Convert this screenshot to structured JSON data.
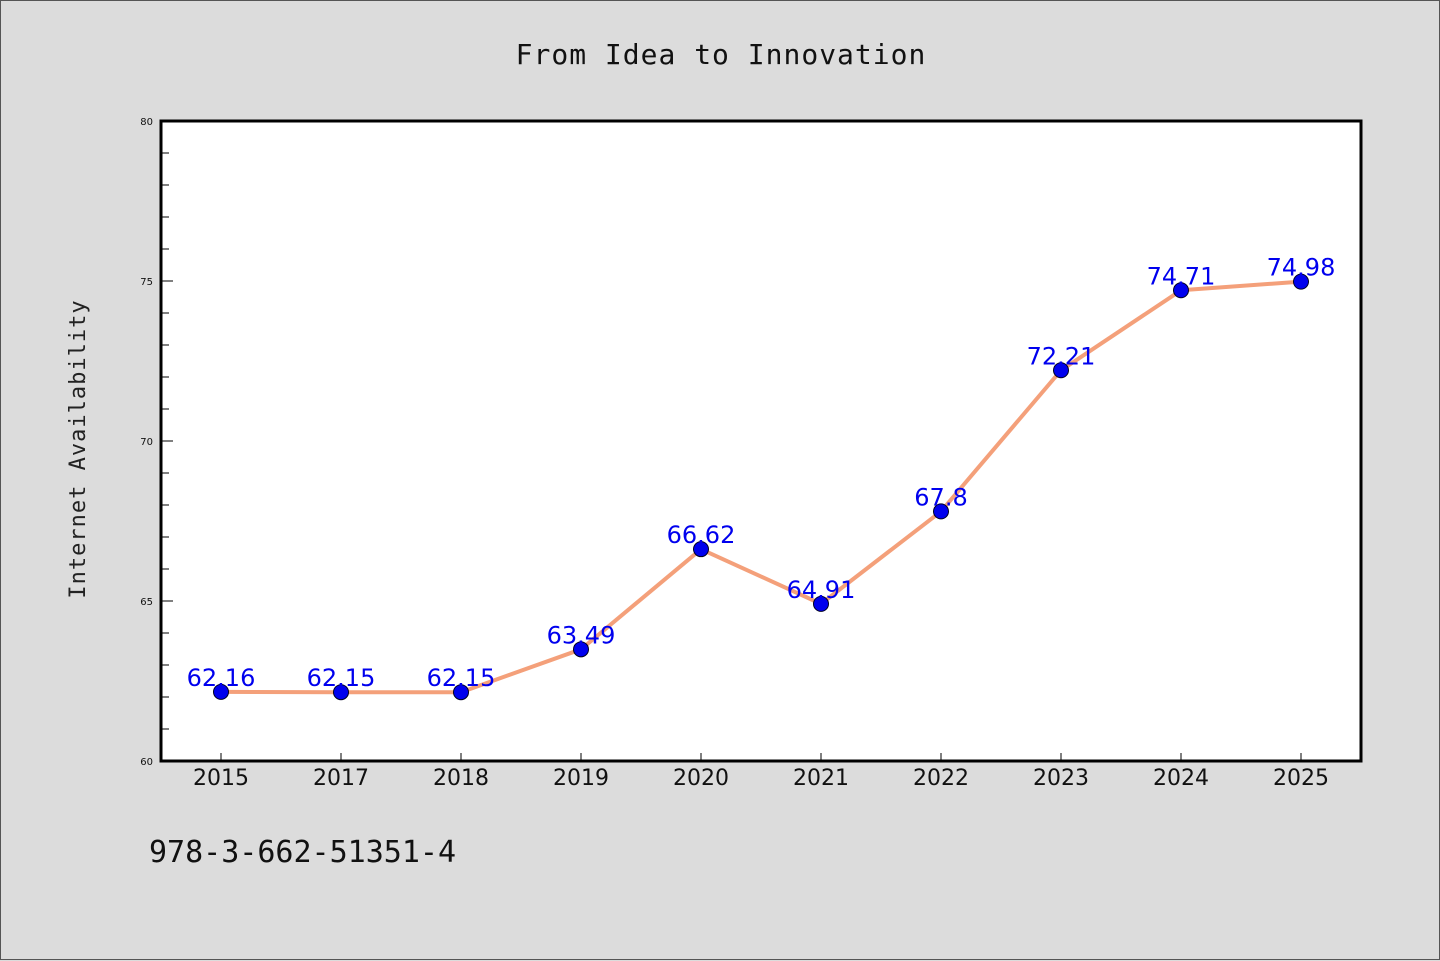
{
  "chart_data": {
    "type": "line",
    "title": "From Idea to Innovation",
    "xlabel": "",
    "ylabel": "Internet Availability",
    "categories": [
      "2015",
      "2017",
      "2018",
      "2019",
      "2020",
      "2021",
      "2022",
      "2023",
      "2024",
      "2025"
    ],
    "series": [
      {
        "values": [
          62.16,
          62.15,
          62.15,
          63.49,
          66.62,
          64.91,
          67.8,
          72.21,
          74.71,
          74.98
        ],
        "labels": [
          "62.16",
          "62.15",
          "62.15",
          "63.49",
          "66.62",
          "64.91",
          "67.8",
          "72.21",
          "74.71",
          "74.98"
        ],
        "line_color": "#f4a07a",
        "marker_color": "#0000ee"
      }
    ],
    "ylim": [
      60,
      80
    ],
    "yticks": [
      "60",
      "65",
      "70",
      "75",
      "80"
    ],
    "grid": false,
    "legend": "none"
  },
  "footer": {
    "isbn": "978-3-662-51351-4"
  },
  "colors": {
    "background": "#dcdcdc",
    "plot_area": "#ffffff",
    "line": "#f4a07a",
    "marker": "#0000ee",
    "label": "#0000ee"
  }
}
